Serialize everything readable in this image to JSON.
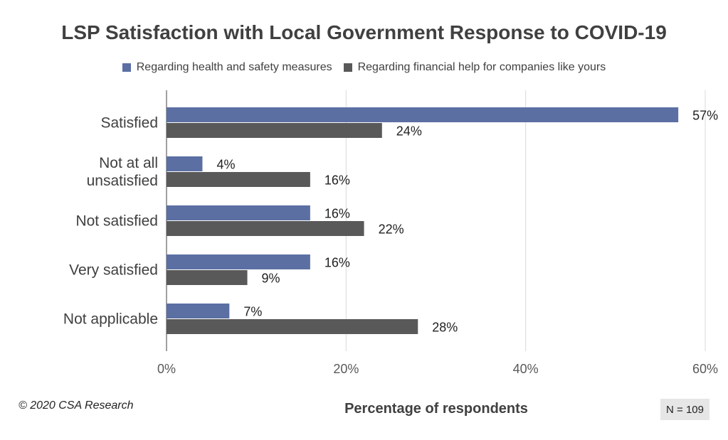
{
  "chart_data": {
    "type": "bar",
    "orientation": "horizontal",
    "title": "LSP Satisfaction with Local Government Response to COVID-19",
    "xlabel": "Percentage of respondents",
    "ylabel": "",
    "categories": [
      "Satisfied",
      "Not at all unsatisfied",
      "Not satisfied",
      "Very satisfied",
      "Not applicable"
    ],
    "category_lines": [
      [
        "Satisfied"
      ],
      [
        "Not at all",
        "unsatisfied"
      ],
      [
        "Not satisfied"
      ],
      [
        "Very satisfied"
      ],
      [
        "Not applicable"
      ]
    ],
    "series": [
      {
        "name": "Regarding health and safety measures",
        "color": "#5b6fa3",
        "values": [
          57,
          4,
          16,
          16,
          7
        ]
      },
      {
        "name": "Regarding financial help for companies like yours",
        "color": "#595959",
        "values": [
          24,
          16,
          22,
          9,
          28
        ]
      }
    ],
    "xlim": [
      0,
      60
    ],
    "xticks": [
      0,
      20,
      40,
      60
    ],
    "tick_labels": [
      "0%",
      "20%",
      "40%",
      "60%"
    ],
    "value_suffix": "%",
    "grid": true,
    "legend_position": "top"
  },
  "footer": {
    "copyright": "© 2020 CSA Research",
    "sample_size": "N = 109"
  }
}
